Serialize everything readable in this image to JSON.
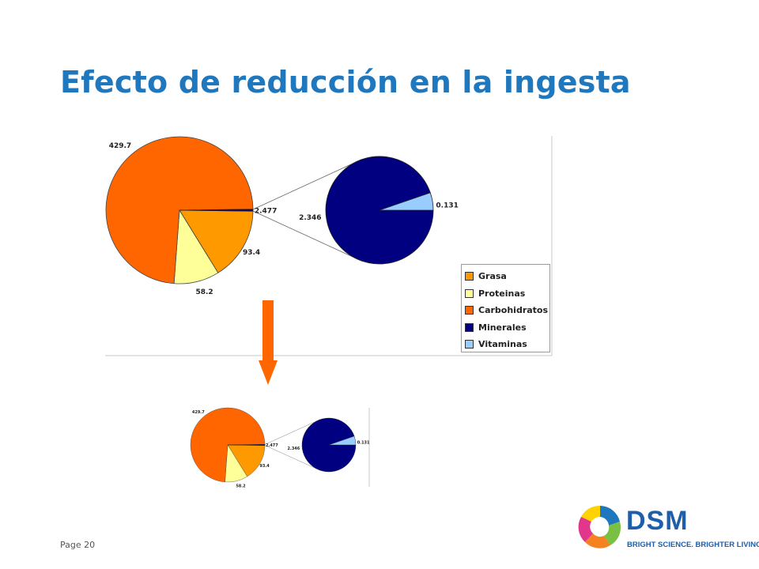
{
  "title": "Efecto de reducción en la ingesta",
  "footer": {
    "page_label": "Page 20"
  },
  "logo": {
    "name": "DSM",
    "tagline": "BRIGHT SCIENCE. BRIGHTER LIVING.",
    "icon": "dsm-logo-icon"
  },
  "colors": {
    "title": "#1f77bd",
    "grasa": "#ff9900",
    "proteinas": "#ffff99",
    "carbohidratos": "#ff6600",
    "minerales": "#000080",
    "vitaminas": "#99ccff",
    "arrow": "#ff6600"
  },
  "arrow_icon": "down-arrow-icon",
  "chart_data": [
    {
      "type": "pie",
      "subtype": "pie-of-pie",
      "categories": [
        "Grasa",
        "Proteinas",
        "Carbohidratos",
        "Minerales",
        "Vitaminas"
      ],
      "values": [
        93.4,
        58.2,
        429.7,
        2.346,
        0.131
      ],
      "data_labels": [
        "93.4",
        "58.2",
        "429.7",
        "2.346",
        "0.131"
      ],
      "secondary_group_label": "2.477",
      "legend": {
        "position": "bottom-right",
        "entries": [
          "Grasa",
          "Proteinas",
          "Carbohidratos",
          "Minerales",
          "Vitaminas"
        ]
      }
    },
    {
      "type": "pie",
      "subtype": "pie-of-pie",
      "categories": [
        "Grasa",
        "Proteinas",
        "Carbohidratos",
        "Minerales",
        "Vitaminas"
      ],
      "values": [
        93.4,
        58.2,
        429.7,
        2.346,
        0.131
      ],
      "data_labels": [
        "93.4",
        "58.2",
        "429.7",
        "2.346",
        "0.131"
      ],
      "secondary_group_label": "2.477"
    }
  ]
}
